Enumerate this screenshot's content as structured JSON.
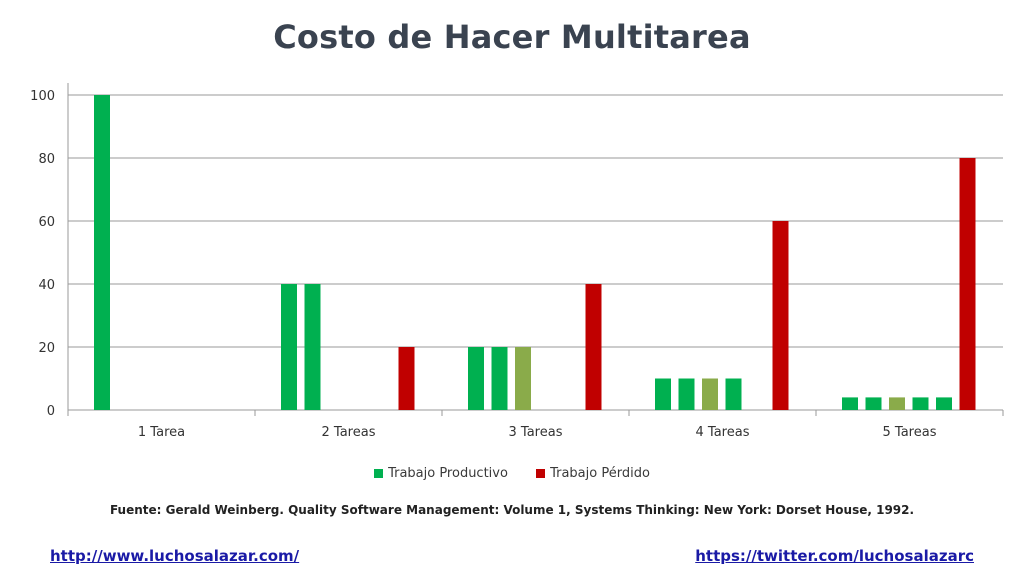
{
  "title": "Costo de Hacer Multitarea",
  "colors": {
    "productive": "#00b050",
    "productive_alt": "#8aab4a",
    "lost": "#c00000",
    "title": "#3a4350",
    "grid": "#9a9a9a",
    "link": "#1a1aa6"
  },
  "legend": {
    "productive_label": "Trabajo Productivo",
    "lost_label": "Trabajo Pérdido"
  },
  "source": "Fuente: Gerald Weinberg. Quality Software Management: Volume 1, Systems Thinking: New York: Dorset House, 1992.",
  "links": {
    "left": "http://www.luchosalazar.com/",
    "right": "https://twitter.com/luchosalazarc"
  },
  "chart_data": {
    "type": "bar",
    "categories": [
      "1 Tarea",
      "2 Tareas",
      "3 Tareas",
      "4 Tareas",
      "5 Tareas"
    ],
    "ylim": [
      0,
      100
    ],
    "yticks": [
      0,
      20,
      40,
      60,
      80,
      100
    ],
    "grid": true,
    "legend_position": "bottom",
    "groups": [
      {
        "category": "1 Tarea",
        "productive": [
          100
        ],
        "lost": 0
      },
      {
        "category": "2 Tareas",
        "productive": [
          40,
          40
        ],
        "lost": 20
      },
      {
        "category": "3 Tareas",
        "productive": [
          20,
          20,
          20
        ],
        "lost": 40
      },
      {
        "category": "4 Tareas",
        "productive": [
          10,
          10,
          10,
          10
        ],
        "lost": 60
      },
      {
        "category": "5 Tareas",
        "productive": [
          4,
          4,
          4,
          4,
          4
        ],
        "lost": 80
      }
    ],
    "series": [
      {
        "name": "Trabajo Productivo"
      },
      {
        "name": "Trabajo Pérdido"
      }
    ]
  }
}
